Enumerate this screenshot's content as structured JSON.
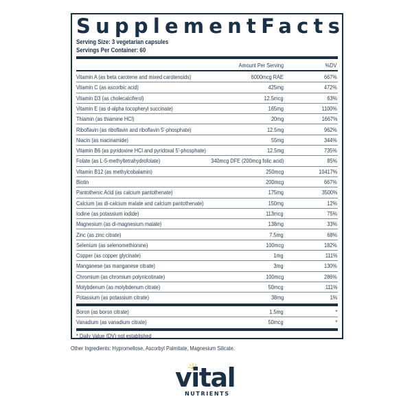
{
  "label": {
    "title_words": [
      "Supplement",
      "Facts"
    ],
    "serving_size": "Serving Size: 3 vegetarian capsules",
    "servings_per_container": "Servings Per Container: 60",
    "header": {
      "amount": "Amount Per Serving",
      "dv": "%DV"
    },
    "rows": [
      {
        "name": "Vitamin A (as beta carotene and mixed carotenoids)",
        "amount": "6000mcg RAE",
        "dv": "667%"
      },
      {
        "name": "Vitamin C (as ascorbic acid)",
        "amount": "425mg",
        "dv": "472%"
      },
      {
        "name": "Vitamin D3 (as cholecalciferol)",
        "amount": "12.5mcg",
        "dv": "63%"
      },
      {
        "name": "Vitamin E (as d-alpha tocopheryl succinate)",
        "amount": "165mg",
        "dv": "1100%"
      },
      {
        "name": "Thiamin (as thiamine HCl)",
        "amount": "20mg",
        "dv": "1667%"
      },
      {
        "name": "Riboflavin (as riboflavin and riboflavin 5'-phosphate)",
        "amount": "12.5mg",
        "dv": "962%"
      },
      {
        "name": "Niacin (as niacinamide)",
        "amount": "55mg",
        "dv": "344%"
      },
      {
        "name": "Vitamin B6 (as pyridoxine HCl and pyridoxal 5'-phosphate)",
        "amount": "12.5mg",
        "dv": "735%"
      },
      {
        "name": "Folate (as L-5-methyltetrahydrofolate)",
        "amount": "340mcg DFE (200mcg folic acid)",
        "dv": "85%"
      },
      {
        "name": "Vitamin B12 (as methylcobalamin)",
        "amount": "250mcg",
        "dv": "10417%"
      },
      {
        "name": "Biotin",
        "amount": "200mcg",
        "dv": "667%"
      },
      {
        "name": "Pantothenic Acid (as calcium pantothenate)",
        "amount": "175mg",
        "dv": "3500%"
      },
      {
        "name": "Calcium (as di-calcium malate and calcium pantothenate)",
        "amount": "150mg",
        "dv": "12%"
      },
      {
        "name": "Iodine (as potassium iodide)",
        "amount": "113mcg",
        "dv": "75%"
      },
      {
        "name": "Magnesium (as di-magnesium malate)",
        "amount": "138mg",
        "dv": "33%"
      },
      {
        "name": "Zinc (as zinc citrate)",
        "amount": "7.5mg",
        "dv": "68%"
      },
      {
        "name": "Selenium (as selenomethionine)",
        "amount": "100mcg",
        "dv": "182%"
      },
      {
        "name": "Copper (as copper glycinate)",
        "amount": "1mg",
        "dv": "111%"
      },
      {
        "name": "Manganese (as manganese citrate)",
        "amount": "3mg",
        "dv": "130%"
      },
      {
        "name": "Chromium (as chromium polynicotinate)",
        "amount": "100mcg",
        "dv": "286%"
      },
      {
        "name": "Molybdenum (as molybdenum citrate)",
        "amount": "50mcg",
        "dv": "111%"
      },
      {
        "name": "Potassium (as potassium citrate)",
        "amount": "38mg",
        "dv": "1%"
      }
    ],
    "rows_no_dv": [
      {
        "name": "Boron (as boron citrate)",
        "amount": "1.5mg",
        "dv": "*"
      },
      {
        "name": "Vanadium (as vanadium citrate)",
        "amount": "50mcg",
        "dv": "*"
      }
    ],
    "footnote": "* Daily Value (DV) not established"
  },
  "other_ingredients": "Other Ingredients: Hypromellose, Ascorbyl Palmitate, Magnesium Silicate.",
  "brand": {
    "word": "vital",
    "subword": "NUTRIENTS",
    "colors": {
      "navy": "#1b2f45",
      "sun": "#f2c12e"
    }
  }
}
